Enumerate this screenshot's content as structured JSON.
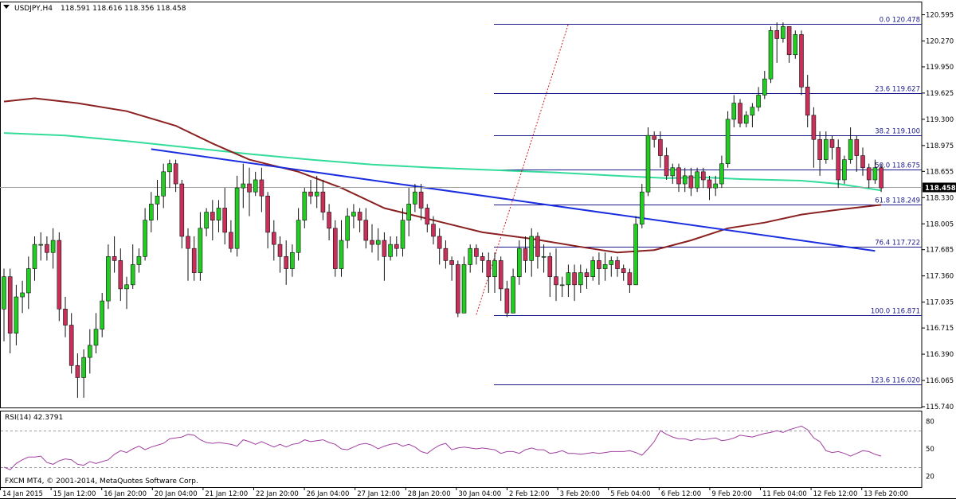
{
  "header": {
    "symbol": "USDJPY,H4",
    "ohlc": "118.591 118.616 118.356 118.458"
  },
  "colors": {
    "bull": "#22cc22",
    "bear": "#c8305a",
    "ma_fast": "#8b2020",
    "ma_slow": "#33dd99",
    "trendline": "#1a2ee0",
    "fib": "#1a1a8c",
    "rsi": "#a040a0",
    "grid_dash": "#9a9aa6"
  },
  "chart_data": [
    {
      "type": "candlestick",
      "title": "USDJPY,H4",
      "ylim": [
        115.74,
        120.62
      ],
      "y_ticks": [
        "120.595",
        "120.270",
        "119.950",
        "119.625",
        "119.300",
        "118.975",
        "118.655",
        "118.330",
        "118.005",
        "117.685",
        "117.360",
        "117.035",
        "116.715",
        "116.390",
        "116.065",
        "115.740"
      ],
      "current_price": "118.458",
      "x_ticks": [
        "14 Jan 2015",
        "15 Jan 12:00",
        "16 Jan 20:00",
        "20 Jan 04:00",
        "21 Jan 12:00",
        "22 Jan 20:00",
        "26 Jan 04:00",
        "27 Jan 12:00",
        "28 Jan 20:00",
        "30 Jan 04:00",
        "2 Feb 12:00",
        "3 Feb 20:00",
        "5 Feb 04:00",
        "6 Feb 12:00",
        "9 Feb 20:00",
        "11 Feb 04:00",
        "12 Feb 12:00",
        "13 Feb 20:00"
      ],
      "candles": [
        [
          116.95,
          117.35,
          116.55,
          117.45
        ],
        [
          117.35,
          116.65,
          116.4,
          117.45
        ],
        [
          116.65,
          117.1,
          116.5,
          117.25
        ],
        [
          117.1,
          117.15,
          116.9,
          117.3
        ],
        [
          117.15,
          117.45,
          116.95,
          117.6
        ],
        [
          117.45,
          117.75,
          117.3,
          117.85
        ],
        [
          117.75,
          117.75,
          117.55,
          117.9
        ],
        [
          117.75,
          117.65,
          117.55,
          117.85
        ],
        [
          117.65,
          117.8,
          117.45,
          117.95
        ],
        [
          117.8,
          116.95,
          116.8,
          117.9
        ],
        [
          116.95,
          116.75,
          116.6,
          117.1
        ],
        [
          116.75,
          116.25,
          116.15,
          116.9
        ],
        [
          116.25,
          116.1,
          115.85,
          116.4
        ],
        [
          116.1,
          116.35,
          115.85,
          116.45
        ],
        [
          116.35,
          116.5,
          116.15,
          116.7
        ],
        [
          116.5,
          116.7,
          116.4,
          116.9
        ],
        [
          116.7,
          117.05,
          116.6,
          117.15
        ],
        [
          117.05,
          117.6,
          116.95,
          117.75
        ],
        [
          117.6,
          117.55,
          117.4,
          117.85
        ],
        [
          117.55,
          117.2,
          117.05,
          117.7
        ],
        [
          117.2,
          117.25,
          116.95,
          117.35
        ],
        [
          117.25,
          117.5,
          117.2,
          117.75
        ],
        [
          117.5,
          117.6,
          117.4,
          117.7
        ],
        [
          117.6,
          118.05,
          117.55,
          118.2
        ],
        [
          118.05,
          118.25,
          117.9,
          118.4
        ],
        [
          118.25,
          118.35,
          118.05,
          118.55
        ],
        [
          118.35,
          118.65,
          118.2,
          118.75
        ],
        [
          118.65,
          118.75,
          118.45,
          118.8
        ],
        [
          118.75,
          118.5,
          118.4,
          118.8
        ],
        [
          118.5,
          117.85,
          117.7,
          118.55
        ],
        [
          117.85,
          117.7,
          117.3,
          117.95
        ],
        [
          117.7,
          117.4,
          117.3,
          117.85
        ],
        [
          117.4,
          117.95,
          117.3,
          118.15
        ],
        [
          117.95,
          118.15,
          117.85,
          118.2
        ],
        [
          118.15,
          118.05,
          117.8,
          118.3
        ],
        [
          118.05,
          118.2,
          117.9,
          118.3
        ],
        [
          118.2,
          117.9,
          117.75,
          118.45
        ],
        [
          117.9,
          117.7,
          117.65,
          118.05
        ],
        [
          117.7,
          118.45,
          117.6,
          118.6
        ],
        [
          118.45,
          118.5,
          118.2,
          118.75
        ],
        [
          118.5,
          118.4,
          118.1,
          118.7
        ],
        [
          118.4,
          118.55,
          118.35,
          118.65
        ],
        [
          118.55,
          118.35,
          118.15,
          118.7
        ],
        [
          118.35,
          117.9,
          117.7,
          118.4
        ],
        [
          117.9,
          117.75,
          117.55,
          118.05
        ],
        [
          117.75,
          117.6,
          117.4,
          117.85
        ],
        [
          117.6,
          117.45,
          117.25,
          117.8
        ],
        [
          117.45,
          117.65,
          117.35,
          117.75
        ],
        [
          117.65,
          118.05,
          117.55,
          118.2
        ],
        [
          118.05,
          118.4,
          117.95,
          118.45
        ],
        [
          118.4,
          118.35,
          118.25,
          118.55
        ],
        [
          118.35,
          118.4,
          118.2,
          118.6
        ],
        [
          118.4,
          118.15,
          118.05,
          118.55
        ],
        [
          118.15,
          117.95,
          117.8,
          118.25
        ],
        [
          117.95,
          117.45,
          117.35,
          118.05
        ],
        [
          117.45,
          117.8,
          117.35,
          118.05
        ],
        [
          117.8,
          118.1,
          117.7,
          118.2
        ],
        [
          118.1,
          118.15,
          117.95,
          118.25
        ],
        [
          118.15,
          118.05,
          117.9,
          118.2
        ],
        [
          118.05,
          117.8,
          117.7,
          118.2
        ],
        [
          117.8,
          117.75,
          117.65,
          118.0
        ],
        [
          117.75,
          117.8,
          117.55,
          117.95
        ],
        [
          117.8,
          117.6,
          117.3,
          117.9
        ],
        [
          117.6,
          117.75,
          117.55,
          117.85
        ],
        [
          117.75,
          117.7,
          117.6,
          117.85
        ],
        [
          117.7,
          118.05,
          117.6,
          118.2
        ],
        [
          118.05,
          118.25,
          117.85,
          118.45
        ],
        [
          118.25,
          118.4,
          118.15,
          118.5
        ],
        [
          118.4,
          118.2,
          118.05,
          118.5
        ],
        [
          118.2,
          118.0,
          117.9,
          118.25
        ],
        [
          118.0,
          117.85,
          117.75,
          118.1
        ],
        [
          117.85,
          117.7,
          117.5,
          117.95
        ],
        [
          117.7,
          117.55,
          117.45,
          117.8
        ],
        [
          117.55,
          117.5,
          117.3,
          117.6
        ],
        [
          117.5,
          116.9,
          116.85,
          117.55
        ],
        [
          116.9,
          117.5,
          116.9,
          117.6
        ],
        [
          117.5,
          117.7,
          117.4,
          117.75
        ],
        [
          117.7,
          117.6,
          117.5,
          117.75
        ],
        [
          117.6,
          117.55,
          117.4,
          117.65
        ],
        [
          117.55,
          117.35,
          117.15,
          117.65
        ],
        [
          117.35,
          117.55,
          117.15,
          117.65
        ],
        [
          117.55,
          117.2,
          117.05,
          117.6
        ],
        [
          117.2,
          116.9,
          116.85,
          117.3
        ],
        [
          116.9,
          117.35,
          116.9,
          117.45
        ],
        [
          117.35,
          117.7,
          117.25,
          117.8
        ],
        [
          117.7,
          117.55,
          117.4,
          117.85
        ],
        [
          117.55,
          117.85,
          117.35,
          117.95
        ],
        [
          117.85,
          117.6,
          117.45,
          117.9
        ],
        [
          117.6,
          117.6,
          117.4,
          117.75
        ],
        [
          117.6,
          117.35,
          117.1,
          117.65
        ],
        [
          117.35,
          117.25,
          117.05,
          117.7
        ],
        [
          117.25,
          117.25,
          117.1,
          117.35
        ],
        [
          117.25,
          117.4,
          117.1,
          117.5
        ],
        [
          117.4,
          117.25,
          117.05,
          117.5
        ],
        [
          117.25,
          117.4,
          117.15,
          117.5
        ],
        [
          117.4,
          117.35,
          117.2,
          117.45
        ],
        [
          117.35,
          117.55,
          117.3,
          117.6
        ],
        [
          117.55,
          117.45,
          117.25,
          117.65
        ],
        [
          117.45,
          117.5,
          117.3,
          117.65
        ],
        [
          117.5,
          117.55,
          117.35,
          117.6
        ],
        [
          117.55,
          117.45,
          117.35,
          117.6
        ],
        [
          117.45,
          117.4,
          117.3,
          117.5
        ],
        [
          117.4,
          117.25,
          117.15,
          117.45
        ],
        [
          117.25,
          118.0,
          117.25,
          118.1
        ],
        [
          118.0,
          118.4,
          117.95,
          118.5
        ],
        [
          118.4,
          119.1,
          118.35,
          119.2
        ],
        [
          119.1,
          119.05,
          118.95,
          119.15
        ],
        [
          119.05,
          118.85,
          118.7,
          119.15
        ],
        [
          118.85,
          118.6,
          118.55,
          118.95
        ],
        [
          118.6,
          118.7,
          118.5,
          118.75
        ],
        [
          118.7,
          118.5,
          118.4,
          118.75
        ],
        [
          118.5,
          118.6,
          118.4,
          118.7
        ],
        [
          118.6,
          118.45,
          118.35,
          118.7
        ],
        [
          118.45,
          118.65,
          118.4,
          118.7
        ],
        [
          118.65,
          118.55,
          118.45,
          118.7
        ],
        [
          118.55,
          118.45,
          118.3,
          118.6
        ],
        [
          118.45,
          118.5,
          118.35,
          118.6
        ],
        [
          118.5,
          118.75,
          118.45,
          118.85
        ],
        [
          118.75,
          119.3,
          118.7,
          119.4
        ],
        [
          119.3,
          119.5,
          119.2,
          119.6
        ],
        [
          119.5,
          119.25,
          119.2,
          119.55
        ],
        [
          119.25,
          119.35,
          119.2,
          119.4
        ],
        [
          119.35,
          119.45,
          119.2,
          119.5
        ],
        [
          119.45,
          119.6,
          119.4,
          119.7
        ],
        [
          119.6,
          119.8,
          119.55,
          119.9
        ],
        [
          119.8,
          120.4,
          119.75,
          120.45
        ],
        [
          120.4,
          120.3,
          120.0,
          120.5
        ],
        [
          120.3,
          120.45,
          120.25,
          120.5
        ],
        [
          120.45,
          120.1,
          120.0,
          120.45
        ],
        [
          120.1,
          120.35,
          120.05,
          120.4
        ],
        [
          120.35,
          119.7,
          119.6,
          120.4
        ],
        [
          119.7,
          119.35,
          119.2,
          119.85
        ],
        [
          119.35,
          119.05,
          118.7,
          119.45
        ],
        [
          119.05,
          118.8,
          118.6,
          119.15
        ],
        [
          118.8,
          119.05,
          118.75,
          119.15
        ],
        [
          119.05,
          118.95,
          118.8,
          119.1
        ],
        [
          118.95,
          118.55,
          118.45,
          119.05
        ],
        [
          118.55,
          118.8,
          118.5,
          118.85
        ],
        [
          118.8,
          119.05,
          118.75,
          119.2
        ],
        [
          119.05,
          118.85,
          118.65,
          119.1
        ],
        [
          118.85,
          118.7,
          118.6,
          118.95
        ],
        [
          118.7,
          118.55,
          118.45,
          118.75
        ],
        [
          118.55,
          118.7,
          118.5,
          118.8
        ],
        [
          118.7,
          118.45,
          118.4,
          118.75
        ]
      ],
      "ma_fast": [
        [
          0,
          119.52
        ],
        [
          5,
          119.56
        ],
        [
          12,
          119.5
        ],
        [
          20,
          119.4
        ],
        [
          28,
          119.22
        ],
        [
          34,
          119.0
        ],
        [
          40,
          118.8
        ],
        [
          48,
          118.65
        ],
        [
          55,
          118.45
        ],
        [
          62,
          118.2
        ],
        [
          70,
          118.05
        ],
        [
          78,
          117.9
        ],
        [
          86,
          117.82
        ],
        [
          94,
          117.72
        ],
        [
          100,
          117.65
        ],
        [
          106,
          117.68
        ],
        [
          112,
          117.8
        ],
        [
          118,
          117.95
        ],
        [
          124,
          118.02
        ],
        [
          130,
          118.12
        ],
        [
          136,
          118.18
        ],
        [
          143,
          118.24
        ]
      ],
      "ma_slow": [
        [
          0,
          119.13
        ],
        [
          10,
          119.1
        ],
        [
          20,
          119.03
        ],
        [
          30,
          118.95
        ],
        [
          40,
          118.87
        ],
        [
          50,
          118.8
        ],
        [
          60,
          118.74
        ],
        [
          70,
          118.7
        ],
        [
          80,
          118.67
        ],
        [
          90,
          118.64
        ],
        [
          100,
          118.6
        ],
        [
          108,
          118.57
        ],
        [
          114,
          118.58
        ],
        [
          120,
          118.56
        ],
        [
          130,
          118.54
        ],
        [
          136,
          118.5
        ],
        [
          143,
          118.42
        ]
      ],
      "trendline": [
        [
          24,
          118.93
        ],
        [
          142,
          117.67
        ]
      ],
      "dotted_line": [
        [
          77,
          116.88
        ],
        [
          92,
          120.48
        ]
      ],
      "fib_levels": [
        {
          "label": "0.0 120.478",
          "value": 120.478
        },
        {
          "label": "23.6 119.627",
          "value": 119.627
        },
        {
          "label": "38.2 119.100",
          "value": 119.1
        },
        {
          "label": "50.0 118.675",
          "value": 118.675
        },
        {
          "label": "61.8 118.249",
          "value": 118.249
        },
        {
          "label": "76.4 117.722",
          "value": 117.722
        },
        {
          "label": "100.0 116.871",
          "value": 116.871
        },
        {
          "label": "123.6 116.020",
          "value": 116.02
        }
      ]
    },
    {
      "type": "line",
      "title": "RSI(14) 42.3791",
      "ylim": [
        8,
        92
      ],
      "y_ticks": [
        "80",
        "50",
        "20"
      ],
      "levels": [
        70,
        30
      ],
      "values": [
        30,
        27,
        34,
        38,
        41,
        41,
        42,
        35,
        33,
        37,
        39,
        38,
        33,
        32,
        36,
        34,
        36,
        38,
        44,
        48,
        46,
        50,
        53,
        49,
        52,
        54,
        56,
        61,
        62,
        63,
        66,
        65,
        60,
        57,
        56,
        57,
        56,
        55,
        53,
        60,
        58,
        55,
        58,
        55,
        52,
        55,
        52,
        55,
        56,
        60,
        58,
        59,
        60,
        57,
        55,
        50,
        49,
        52,
        55,
        56,
        54,
        50,
        53,
        55,
        56,
        53,
        55,
        52,
        47,
        45,
        50,
        54,
        56,
        49,
        51,
        52,
        51,
        50,
        51,
        50,
        49,
        45,
        47,
        47,
        45,
        49,
        51,
        49,
        49,
        45,
        46,
        48,
        45,
        45,
        44,
        45,
        46,
        45,
        46,
        47,
        47,
        47,
        48,
        46,
        43,
        50,
        58,
        70,
        66,
        63,
        61,
        61,
        59,
        61,
        60,
        61,
        62,
        59,
        60,
        62,
        65,
        64,
        63,
        65,
        67,
        68,
        70,
        68,
        71,
        73,
        75,
        71,
        62,
        58,
        48,
        46,
        47,
        45,
        42,
        45,
        48,
        47,
        44,
        42
      ]
    }
  ],
  "footer": {
    "copyright": "FXCM MT4, © 2001-2014, MetaQuotes Software Corp."
  }
}
